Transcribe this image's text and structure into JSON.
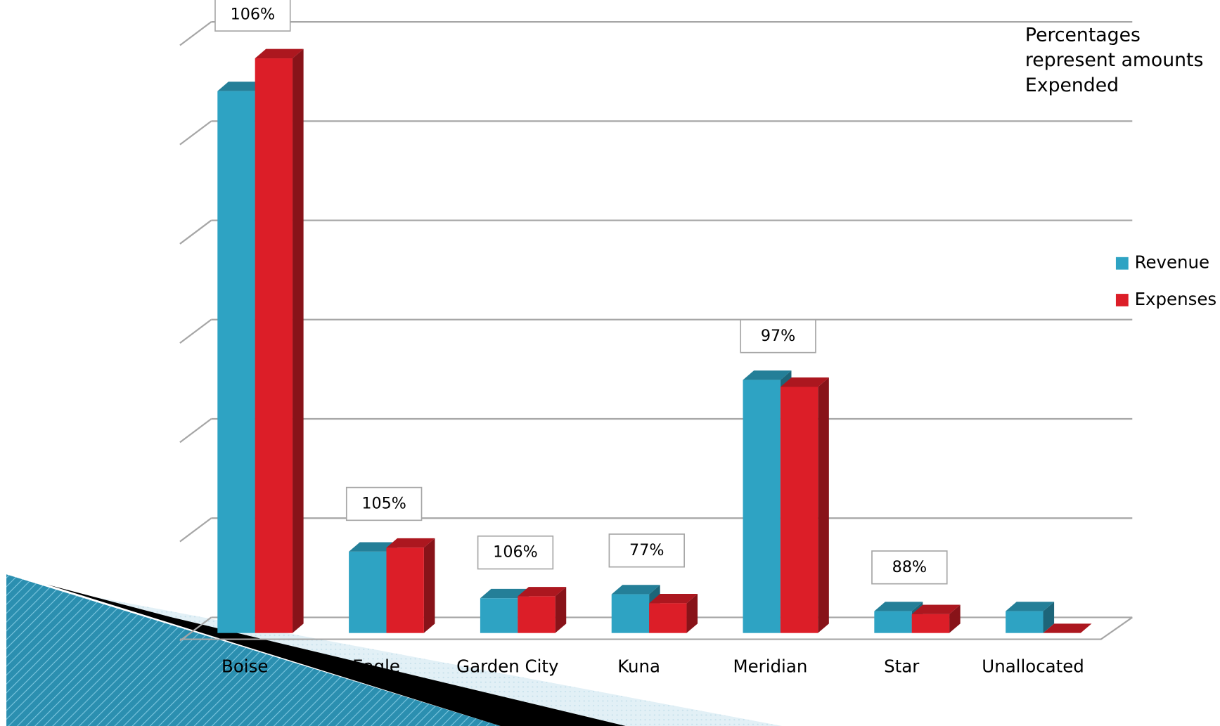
{
  "chart_data": {
    "type": "bar3d",
    "categories": [
      "Boise",
      "Eagle",
      "Garden City",
      "Kuna",
      "Meridian",
      "Star",
      "Unallocated"
    ],
    "series": [
      {
        "name": "Revenue",
        "color": "#2ea3c3",
        "values": [
          5.46,
          0.82,
          0.35,
          0.39,
          2.55,
          0.22,
          0.22
        ]
      },
      {
        "name": "Expenses",
        "color": "#dc1e28",
        "values": [
          5.79,
          0.86,
          0.37,
          0.3,
          2.48,
          0.19,
          0
        ]
      }
    ],
    "ratio_labels": [
      "106%",
      "105%",
      "106%",
      "77%",
      "97%",
      "88%",
      null
    ],
    "note": [
      "Percentages",
      "represent amounts",
      "Expended"
    ],
    "ylim": [
      0,
      6
    ],
    "yticks": [
      0,
      1,
      2,
      3,
      4,
      5,
      6
    ],
    "tick_labels": false,
    "grid": true,
    "legend": "right"
  }
}
